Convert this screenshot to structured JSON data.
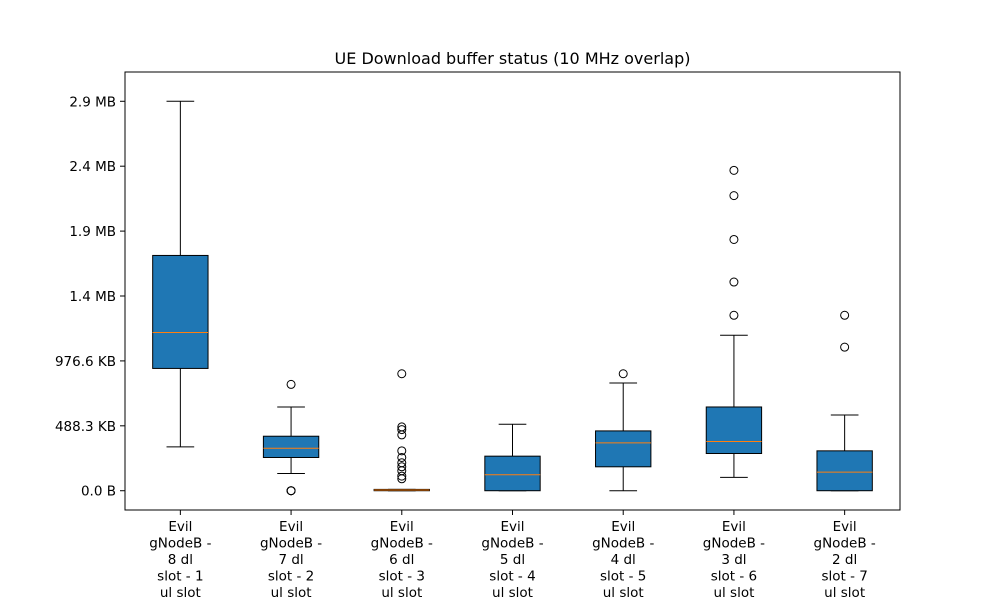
{
  "chart_data": {
    "type": "box",
    "title": "UE Download buffer status (10 MHz overlap)",
    "xlabel": "",
    "ylabel": "",
    "y_unit": "MB",
    "ylim": [
      -0.145,
      3.15
    ],
    "y_ticks": [
      {
        "value": 0.0,
        "label": "0.0 B"
      },
      {
        "value": 0.4883,
        "label": "488.3 KB"
      },
      {
        "value": 0.9766,
        "label": "976.6 KB"
      },
      {
        "value": 1.4648,
        "label": "1.4 MB"
      },
      {
        "value": 1.9531,
        "label": "1.9 MB"
      },
      {
        "value": 2.4414,
        "label": "2.4 MB"
      },
      {
        "value": 2.9297,
        "label": "2.9 MB"
      }
    ],
    "grid": false,
    "colors": {
      "box_fill": "#1f77b4",
      "median": "#ff7f0e",
      "edge": "#000000"
    },
    "categories": [
      {
        "lines": [
          "Evil",
          "gNodeB -",
          "8 dl",
          "slot - 1",
          "ul slot"
        ]
      },
      {
        "lines": [
          "Evil",
          "gNodeB -",
          "7 dl",
          "slot - 2",
          "ul slot"
        ]
      },
      {
        "lines": [
          "Evil",
          "gNodeB -",
          "6 dl",
          "slot - 3",
          "ul slot"
        ]
      },
      {
        "lines": [
          "Evil",
          "gNodeB -",
          "5 dl",
          "slot - 4",
          "ul slot"
        ]
      },
      {
        "lines": [
          "Evil",
          "gNodeB -",
          "4 dl",
          "slot - 5",
          "ul slot"
        ]
      },
      {
        "lines": [
          "Evil",
          "gNodeB -",
          "3 dl",
          "slot - 6",
          "ul slot"
        ]
      },
      {
        "lines": [
          "Evil",
          "gNodeB -",
          "2 dl",
          "slot - 7",
          "ul slot"
        ]
      }
    ],
    "boxes": [
      {
        "whislo": 0.33,
        "q1": 0.92,
        "med": 1.19,
        "q3": 1.77,
        "whishi": 2.93,
        "fliers": []
      },
      {
        "whislo": 0.13,
        "q1": 0.25,
        "med": 0.32,
        "q3": 0.41,
        "whishi": 0.63,
        "fliers": [
          0.0,
          0.0,
          0.0,
          0.8
        ]
      },
      {
        "whislo": 0.0,
        "q1": 0.0,
        "med": 0.005,
        "q3": 0.01,
        "whishi": 0.01,
        "fliers": [
          0.09,
          0.11,
          0.15,
          0.18,
          0.21,
          0.25,
          0.3,
          0.42,
          0.46,
          0.48,
          0.88
        ]
      },
      {
        "whislo": 0.0,
        "q1": 0.0,
        "med": 0.12,
        "q3": 0.26,
        "whishi": 0.5,
        "fliers": []
      },
      {
        "whislo": 0.0,
        "q1": 0.18,
        "med": 0.36,
        "q3": 0.45,
        "whishi": 0.81,
        "fliers": [
          0.88
        ]
      },
      {
        "whislo": 0.1,
        "q1": 0.28,
        "med": 0.37,
        "q3": 0.63,
        "whishi": 1.17,
        "fliers": [
          1.32,
          1.57,
          1.89,
          2.22,
          2.41
        ]
      },
      {
        "whislo": 0.0,
        "q1": 0.0,
        "med": 0.14,
        "q3": 0.3,
        "whishi": 0.57,
        "fliers": [
          1.08,
          1.32
        ]
      }
    ]
  }
}
